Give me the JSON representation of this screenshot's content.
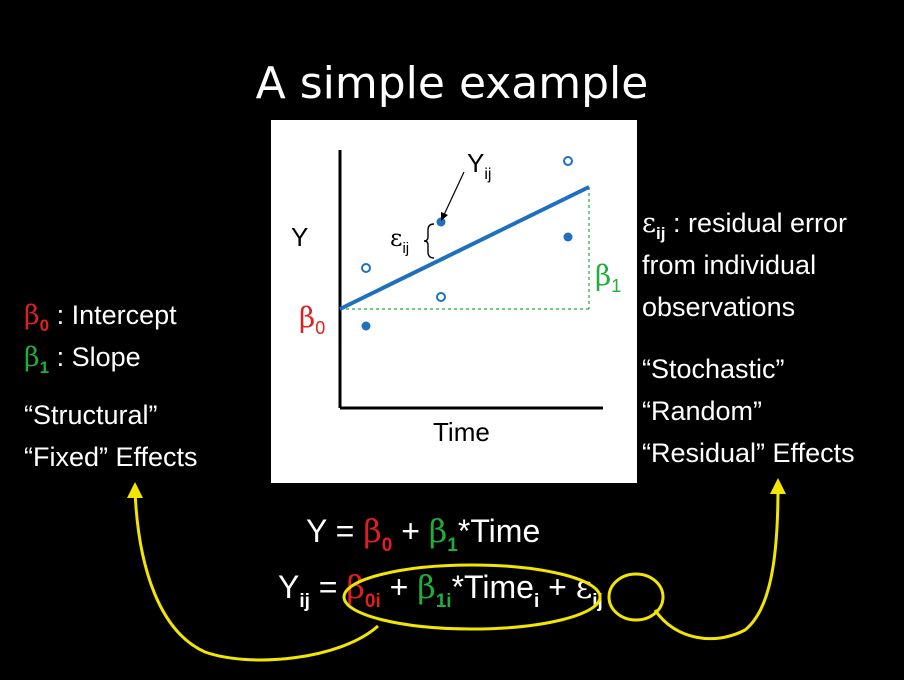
{
  "title": "A simple example",
  "plot": {
    "y_axis_label": "Y",
    "x_axis_label": "Time",
    "yij_label": "Y",
    "yij_sub": "ij",
    "eps_label": "ε",
    "eps_sub": "ij",
    "beta0_label": "β",
    "beta0_sub": "0",
    "beta1_label": "β",
    "beta1_sub": "1",
    "colors": {
      "line": "#1f6fbf",
      "points": "#1f6fbf",
      "beta0": "#e02020",
      "beta1": "#1fae3a"
    }
  },
  "left": {
    "beta0_sym": "β",
    "beta0_sub": "0",
    "beta0_text": " : Intercept",
    "beta1_sym": "β",
    "beta1_sub": "1",
    "beta1_text": " : Slope",
    "structural": "“Structural”",
    "fixed": "“Fixed” Effects"
  },
  "right": {
    "eps_sym": "ε",
    "eps_sub": "ij",
    "eps_text": " : residual error",
    "line2": "from individual",
    "line3": "observations",
    "stochastic": "“Stochastic”",
    "random": "“Random”",
    "residual": "“Residual” Effects"
  },
  "equations": {
    "eq1": {
      "y": "Y = ",
      "b0": "β",
      "b0_sub": "0",
      "plus": " + ",
      "b1": "β",
      "b1_sub": "1",
      "time": "*Time"
    },
    "eq2": {
      "y": "Y",
      "y_sub": "ij",
      "equals": " = ",
      "b0": "β",
      "b0_sub": "0i",
      "plus": " + ",
      "b1": "β",
      "b1_sub": "1i",
      "time": "*Time",
      "time_sub": "i",
      "plus2": " + ",
      "eps": "ε",
      "eps_sub": "ij"
    }
  }
}
